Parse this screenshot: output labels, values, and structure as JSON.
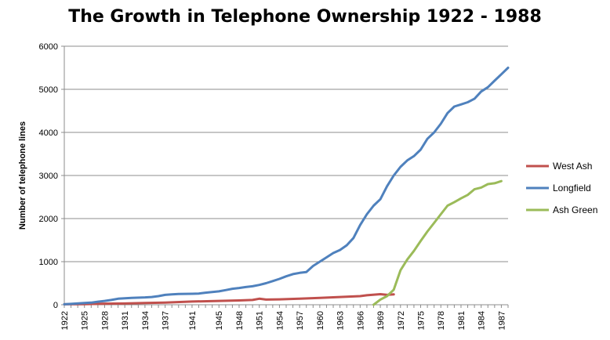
{
  "chart_data": {
    "type": "line",
    "title": "The Growth in Telephone Ownership 1922 - 1988",
    "xlabel": "",
    "ylabel": "Number of telephone lines",
    "ylim": [
      0,
      6000
    ],
    "yticks": [
      0,
      1000,
      2000,
      3000,
      4000,
      5000,
      6000
    ],
    "xlim": [
      1922,
      1988
    ],
    "xticks": [
      1922,
      1925,
      1928,
      1931,
      1934,
      1937,
      1941,
      1945,
      1948,
      1951,
      1954,
      1957,
      1960,
      1963,
      1966,
      1969,
      1972,
      1975,
      1978,
      1981,
      1984,
      1987
    ],
    "grid": "horizontal",
    "legend_position": "right",
    "series": [
      {
        "name": "West Ash",
        "color": "#C0504D",
        "points": [
          [
            1922,
            10
          ],
          [
            1925,
            15
          ],
          [
            1928,
            25
          ],
          [
            1931,
            30
          ],
          [
            1934,
            40
          ],
          [
            1937,
            50
          ],
          [
            1941,
            75
          ],
          [
            1945,
            90
          ],
          [
            1948,
            100
          ],
          [
            1950,
            110
          ],
          [
            1951,
            140
          ],
          [
            1952,
            120
          ],
          [
            1954,
            125
          ],
          [
            1957,
            140
          ],
          [
            1960,
            160
          ],
          [
            1963,
            180
          ],
          [
            1966,
            200
          ],
          [
            1967,
            220
          ],
          [
            1969,
            245
          ],
          [
            1970,
            230
          ],
          [
            1971,
            240
          ]
        ]
      },
      {
        "name": "Longfield",
        "color": "#4F81BD",
        "points": [
          [
            1922,
            10
          ],
          [
            1923,
            20
          ],
          [
            1925,
            40
          ],
          [
            1926,
            50
          ],
          [
            1927,
            70
          ],
          [
            1928,
            90
          ],
          [
            1929,
            110
          ],
          [
            1930,
            140
          ],
          [
            1931,
            150
          ],
          [
            1932,
            160
          ],
          [
            1934,
            170
          ],
          [
            1935,
            180
          ],
          [
            1936,
            200
          ],
          [
            1937,
            230
          ],
          [
            1938,
            240
          ],
          [
            1939,
            250
          ],
          [
            1941,
            255
          ],
          [
            1942,
            260
          ],
          [
            1943,
            280
          ],
          [
            1945,
            310
          ],
          [
            1946,
            340
          ],
          [
            1947,
            370
          ],
          [
            1948,
            390
          ],
          [
            1949,
            410
          ],
          [
            1950,
            430
          ],
          [
            1951,
            460
          ],
          [
            1952,
            500
          ],
          [
            1953,
            550
          ],
          [
            1954,
            600
          ],
          [
            1955,
            660
          ],
          [
            1956,
            710
          ],
          [
            1957,
            740
          ],
          [
            1958,
            760
          ],
          [
            1959,
            900
          ],
          [
            1960,
            1000
          ],
          [
            1961,
            1100
          ],
          [
            1962,
            1200
          ],
          [
            1963,
            1270
          ],
          [
            1964,
            1380
          ],
          [
            1965,
            1550
          ],
          [
            1966,
            1850
          ],
          [
            1967,
            2100
          ],
          [
            1968,
            2300
          ],
          [
            1969,
            2450
          ],
          [
            1970,
            2750
          ],
          [
            1971,
            3000
          ],
          [
            1972,
            3200
          ],
          [
            1973,
            3350
          ],
          [
            1974,
            3450
          ],
          [
            1975,
            3600
          ],
          [
            1976,
            3850
          ],
          [
            1977,
            4000
          ],
          [
            1978,
            4200
          ],
          [
            1979,
            4450
          ],
          [
            1980,
            4600
          ],
          [
            1981,
            4650
          ],
          [
            1982,
            4700
          ],
          [
            1983,
            4780
          ],
          [
            1984,
            4950
          ],
          [
            1985,
            5050
          ],
          [
            1986,
            5200
          ],
          [
            1987,
            5350
          ],
          [
            1988,
            5500
          ]
        ]
      },
      {
        "name": "Ash Green",
        "color": "#9BBB59",
        "points": [
          [
            1968,
            0
          ],
          [
            1969,
            120
          ],
          [
            1970,
            200
          ],
          [
            1971,
            350
          ],
          [
            1972,
            800
          ],
          [
            1973,
            1050
          ],
          [
            1974,
            1250
          ],
          [
            1975,
            1480
          ],
          [
            1976,
            1700
          ],
          [
            1977,
            1900
          ],
          [
            1978,
            2100
          ],
          [
            1979,
            2300
          ],
          [
            1980,
            2380
          ],
          [
            1981,
            2470
          ],
          [
            1982,
            2550
          ],
          [
            1983,
            2680
          ],
          [
            1984,
            2720
          ],
          [
            1985,
            2800
          ],
          [
            1986,
            2820
          ],
          [
            1987,
            2870
          ]
        ]
      }
    ]
  }
}
